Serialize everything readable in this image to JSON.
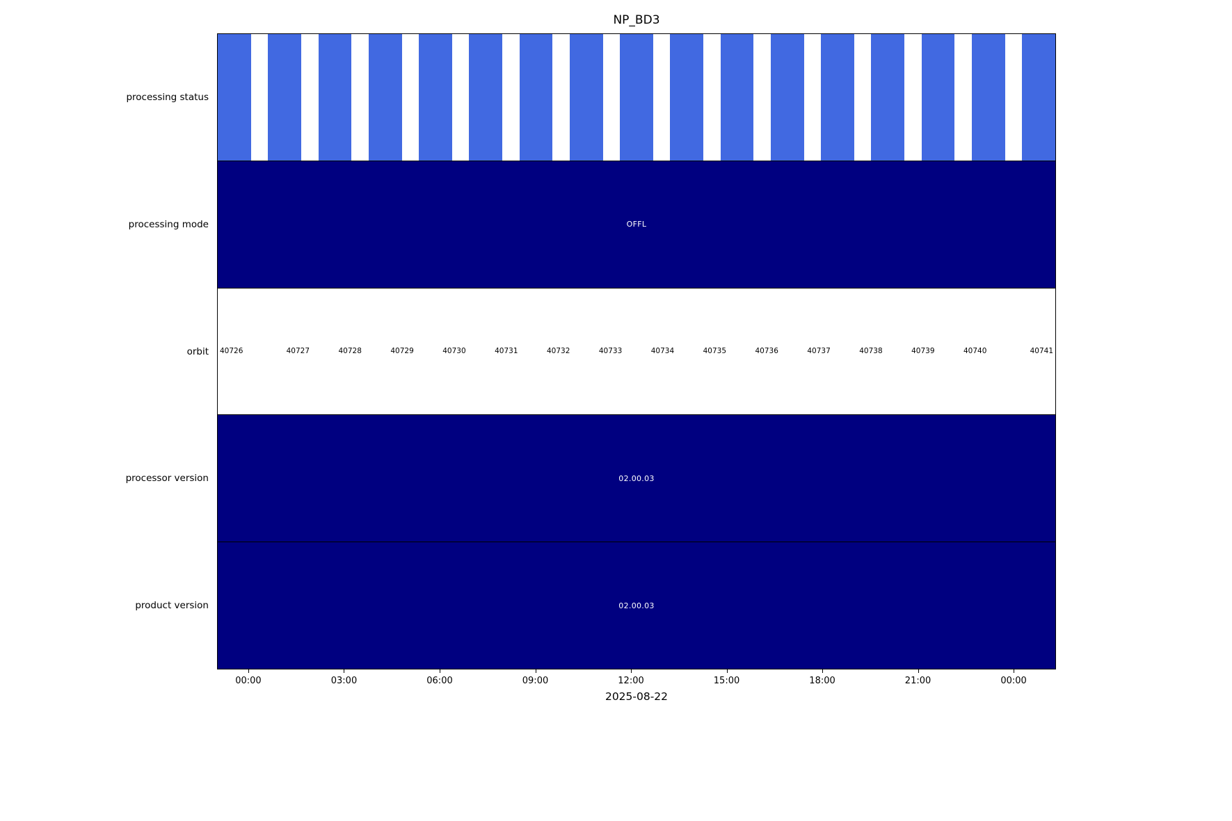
{
  "title": "NP_BD3",
  "colors": {
    "status_bar_blue": "#4169e1",
    "filled_navy": "#000080",
    "filled_text": "#ffffff",
    "axis_black": "#000000",
    "background": "#ffffff"
  },
  "chart_data": {
    "type": "table",
    "title": "NP_BD3",
    "xlabel": "2025-08-22",
    "x_tick_labels": [
      "00:00",
      "03:00",
      "06:00",
      "09:00",
      "12:00",
      "15:00",
      "18:00",
      "21:00",
      "00:00"
    ],
    "rows": [
      {
        "label": "processing status",
        "kind": "status_bars",
        "bar_color": "#4169e1",
        "bar_count": 17,
        "bar_width_frac": 0.0398,
        "statuses": [
          "processed",
          "processed",
          "processed",
          "processed",
          "processed",
          "processed",
          "processed",
          "processed",
          "processed",
          "processed",
          "processed",
          "processed",
          "processed",
          "processed",
          "processed",
          "processed",
          "processed"
        ]
      },
      {
        "label": "processing mode",
        "kind": "filled_span",
        "value": "OFFL",
        "fill_color": "#000080",
        "text_color": "#ffffff"
      },
      {
        "label": "orbit",
        "kind": "categories",
        "values": [
          "40726",
          "40727",
          "40728",
          "40729",
          "40730",
          "40731",
          "40732",
          "40733",
          "40734",
          "40735",
          "40736",
          "40737",
          "40738",
          "40739",
          "40740",
          "40741"
        ]
      },
      {
        "label": "processor version",
        "kind": "filled_span",
        "value": "02.00.03",
        "fill_color": "#000080",
        "text_color": "#ffffff"
      },
      {
        "label": "product version",
        "kind": "filled_span",
        "value": "02.00.03",
        "fill_color": "#000080",
        "text_color": "#ffffff"
      }
    ],
    "layout": {
      "tick_start_frac": 0.0373,
      "tick_step_frac": 0.11402,
      "grid": false,
      "legend": "none",
      "row_order_top_to_bottom": [
        "processing status",
        "processing mode",
        "orbit",
        "processor version",
        "product version"
      ]
    }
  }
}
